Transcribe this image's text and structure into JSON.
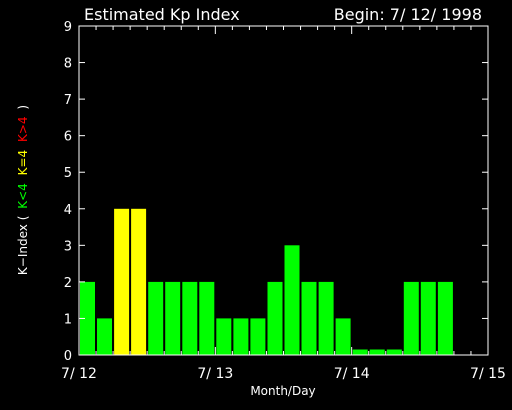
{
  "chart_data": {
    "type": "bar",
    "title": "Estimated Kp Index",
    "begin_label": "Begin: 7/ 12/ 1998",
    "xlabel": "Month/Day",
    "ylabel": {
      "prefix": "K−Index (",
      "green": "K<4",
      "yellow": "K=4",
      "red": "K>4",
      "suffix": ")"
    },
    "ylim": [
      0,
      9
    ],
    "y_ticks": [
      "0",
      "1",
      "2",
      "3",
      "4",
      "5",
      "6",
      "7",
      "8",
      "9"
    ],
    "x_ticks": [
      {
        "label": "7/ 12",
        "slot": 0
      },
      {
        "label": "7/ 13",
        "slot": 8
      },
      {
        "label": "7/ 14",
        "slot": 16
      },
      {
        "label": "7/ 15",
        "slot": 24
      }
    ],
    "slots": 24,
    "values": [
      2,
      1,
      4,
      4,
      2,
      2,
      2,
      2,
      1,
      1,
      1,
      2,
      3,
      2,
      2,
      1,
      0.15,
      0.15,
      0.15,
      2,
      2,
      2
    ],
    "colors": {
      "low": "#00ff00",
      "equal": "#ffff00",
      "high": "#ff0000",
      "axes": "#ffffff",
      "background": "#000000"
    }
  }
}
